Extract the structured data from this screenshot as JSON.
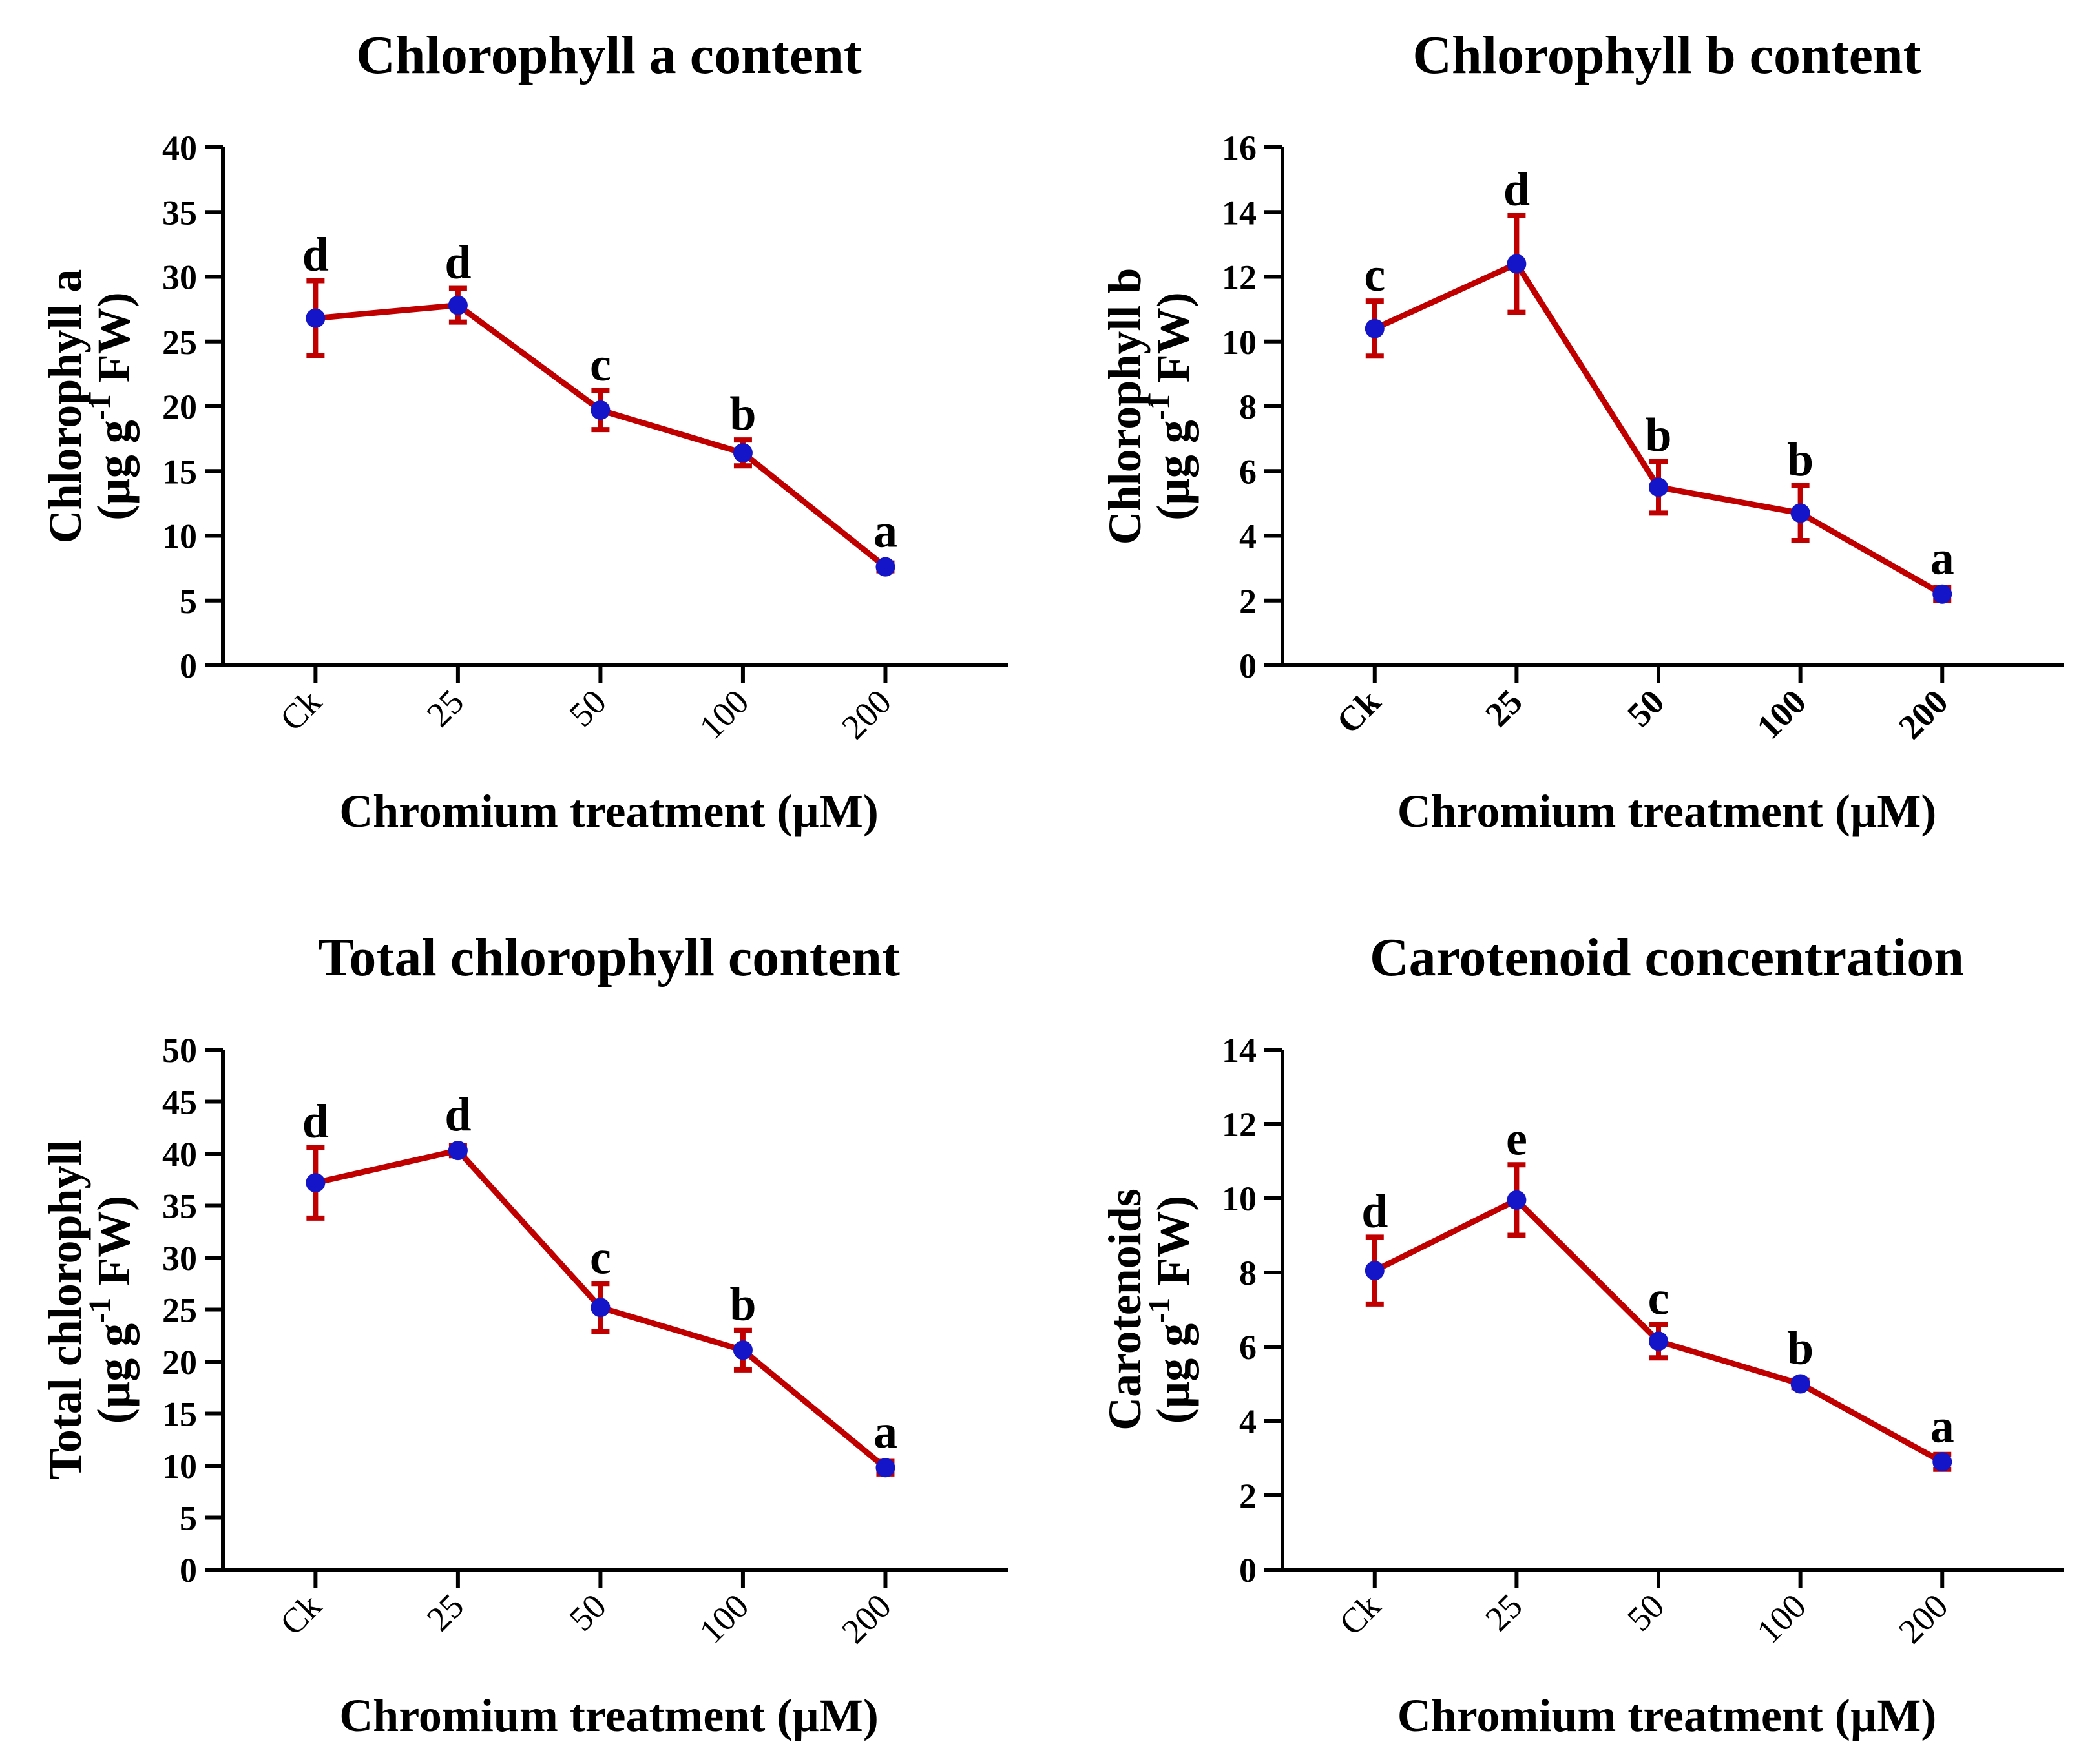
{
  "chart_data": [
    {
      "type": "line",
      "title": "Chlorophyll a content",
      "xlabel": "Chromium treatment (µM)",
      "ylabel_line1": "Chlorophyll a",
      "ylabel_line2_prefix": "(µg g",
      "ylabel_sup": "-1",
      "ylabel_line2_suffix": " FW)",
      "categories": [
        "Ck",
        "25",
        "50",
        "100",
        "200"
      ],
      "values": [
        26.8,
        27.8,
        19.7,
        16.4,
        7.6
      ],
      "errors": [
        2.9,
        1.3,
        1.5,
        1.0,
        0.3
      ],
      "significance": [
        "d",
        "d",
        "c",
        "b",
        "a"
      ],
      "ylim": [
        0,
        40
      ],
      "yticks": [
        "0",
        "5",
        "10",
        "15",
        "20",
        "25",
        "30",
        "35",
        "40"
      ],
      "ytick_values": [
        0,
        5,
        10,
        15,
        20,
        25,
        30,
        35,
        40
      ],
      "bold_x_ticks": false,
      "line_color": "#c00000",
      "marker_color": "#1414c8",
      "error_color": "#c00000"
    },
    {
      "type": "line",
      "title": "Chlorophyll b content",
      "xlabel": "Chromium treatment (µM)",
      "ylabel_line1": "Chlorophyll b",
      "ylabel_line2_prefix": "(µg g",
      "ylabel_sup": "-1",
      "ylabel_line2_suffix": " FW)",
      "categories": [
        "Ck",
        "25",
        "50",
        "100",
        "200"
      ],
      "values": [
        10.4,
        12.4,
        5.5,
        4.7,
        2.2
      ],
      "errors": [
        0.85,
        1.5,
        0.8,
        0.85,
        0.2
      ],
      "significance": [
        "c",
        "d",
        "b",
        "b",
        "a"
      ],
      "ylim": [
        0,
        16
      ],
      "yticks": [
        "0",
        "2",
        "4",
        "6",
        "8",
        "10",
        "12",
        "14",
        "16"
      ],
      "ytick_values": [
        0,
        2,
        4,
        6,
        8,
        10,
        12,
        14,
        16
      ],
      "bold_x_ticks": true,
      "line_color": "#c00000",
      "marker_color": "#1414c8",
      "error_color": "#c00000"
    },
    {
      "type": "line",
      "title": "Total chlorophyll content",
      "xlabel": "Chromium treatment (µM)",
      "ylabel_line1": "Total chlorophyll",
      "ylabel_line2_prefix": "(µg g",
      "ylabel_sup": "-1",
      "ylabel_line2_suffix": " FW)",
      "categories": [
        "Ck",
        "25",
        "50",
        "100",
        "200"
      ],
      "values": [
        37.2,
        40.3,
        25.2,
        21.1,
        9.8
      ],
      "errors": [
        3.4,
        0.5,
        2.3,
        1.9,
        0.6
      ],
      "significance": [
        "d",
        "d",
        "c",
        "b",
        "a"
      ],
      "ylim": [
        0,
        50
      ],
      "yticks": [
        "0",
        "5",
        "10",
        "15",
        "20",
        "25",
        "30",
        "35",
        "40",
        "45",
        "50"
      ],
      "ytick_values": [
        0,
        5,
        10,
        15,
        20,
        25,
        30,
        35,
        40,
        45,
        50
      ],
      "bold_x_ticks": false,
      "line_color": "#c00000",
      "marker_color": "#1414c8",
      "error_color": "#c00000"
    },
    {
      "type": "line",
      "title": "Carotenoid concentration",
      "xlabel": "Chromium treatment (µM)",
      "ylabel_line1": "Carotenoids",
      "ylabel_line2_prefix": "(µg g",
      "ylabel_sup": "-1",
      "ylabel_line2_suffix": " FW)",
      "categories": [
        "Ck",
        "25",
        "50",
        "100",
        "200"
      ],
      "values": [
        8.05,
        9.95,
        6.15,
        5.0,
        2.9
      ],
      "errors": [
        0.9,
        0.95,
        0.45,
        0.1,
        0.2
      ],
      "significance": [
        "d",
        "e",
        "c",
        "b",
        "a"
      ],
      "ylim": [
        0,
        14
      ],
      "yticks": [
        "0",
        "2",
        "4",
        "6",
        "8",
        "10",
        "12",
        "14"
      ],
      "ytick_values": [
        0,
        2,
        4,
        6,
        8,
        10,
        12,
        14
      ],
      "bold_x_ticks": false,
      "line_color": "#c00000",
      "marker_color": "#1414c8",
      "error_color": "#c00000"
    }
  ]
}
